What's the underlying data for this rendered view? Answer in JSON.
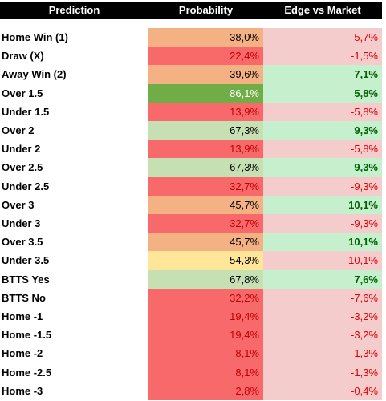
{
  "table": {
    "header": [
      "Prediction",
      "Probability",
      "Edge vs Market"
    ],
    "rows": [
      {
        "prediction": "Home Win (1)",
        "probability": "38,0%",
        "edge": "-5,7%",
        "probability_color": "#f4b183",
        "edge_color": "#f4cccc"
      },
      {
        "prediction": "Draw (X)",
        "probability": "22,4%",
        "edge": "-1,5%",
        "probability_color": "#f8696b",
        "edge_color": "#f4cccc"
      },
      {
        "prediction": "Away Win (2)",
        "probability": "39,6%",
        "edge": "7,1%",
        "probability_color": "#f4b183",
        "edge_color": "#c6efce"
      },
      {
        "prediction": "Over 1.5",
        "probability": "86,1%",
        "edge": "5,8%",
        "probability_color": "#70ad47",
        "edge_color": "#c6efce"
      },
      {
        "prediction": "Under 1.5",
        "probability": "13,9%",
        "edge": "-5,8%",
        "probability_color": "#f8696b",
        "edge_color": "#f4cccc"
      },
      {
        "prediction": "Over 2",
        "probability": "67,3%",
        "edge": "9,3%",
        "probability_color": "#c6e0b4",
        "edge_color": "#c6efce"
      },
      {
        "prediction": "Under 2",
        "probability": "13,9%",
        "edge": "-5,8%",
        "probability_color": "#f8696b",
        "edge_color": "#f4cccc"
      },
      {
        "prediction": "Over 2.5",
        "probability": "67,3%",
        "edge": "9,3%",
        "probability_color": "#c6e0b4",
        "edge_color": "#c6efce"
      },
      {
        "prediction": "Under 2.5",
        "probability": "32,7%",
        "edge": "-9,3%",
        "probability_color": "#f8696b",
        "edge_color": "#f4cccc"
      },
      {
        "prediction": "Over 3",
        "probability": "45,7%",
        "edge": "10,1%",
        "probability_color": "#f4b183",
        "edge_color": "#c6efce"
      },
      {
        "prediction": "Under 3",
        "probability": "32,7%",
        "edge": "-9,3%",
        "probability_color": "#f8696b",
        "edge_color": "#f4cccc"
      },
      {
        "prediction": "Over 3.5",
        "probability": "45,7%",
        "edge": "10,1%",
        "probability_color": "#f4b183",
        "edge_color": "#c6efce"
      },
      {
        "prediction": "Under 3.5",
        "probability": "54,3%",
        "edge": "-10,1%",
        "probability_color": "#ffe699",
        "edge_color": "#f4cccc"
      },
      {
        "prediction": "BTTS Yes",
        "probability": "67,8%",
        "edge": "7,6%",
        "probability_color": "#c6e0b4",
        "edge_color": "#c6efce"
      },
      {
        "prediction": "BTTS No",
        "probability": "32,2%",
        "edge": "-7,6%",
        "probability_color": "#f8696b",
        "edge_color": "#f4cccc"
      },
      {
        "prediction": "Home -1",
        "probability": "19,4%",
        "edge": "-3,2%",
        "probability_color": "#f8696b",
        "edge_color": "#f4cccc"
      },
      {
        "prediction": "Home -1.5",
        "probability": "19,4%",
        "edge": "-3,2%",
        "probability_color": "#f8696b",
        "edge_color": "#f4cccc"
      },
      {
        "prediction": "Home -2",
        "probability": "8,1%",
        "edge": "-1,3%",
        "probability_color": "#f8696b",
        "edge_color": "#f4cccc"
      },
      {
        "prediction": "Home -2.5",
        "probability": "8,1%",
        "edge": "-1,3%",
        "probability_color": "#f8696b",
        "edge_color": "#f4cccc"
      },
      {
        "prediction": "Home -3",
        "probability": "2,8%",
        "edge": "-0,4%",
        "probability_color": "#f8696b",
        "edge_color": "#f4cccc"
      }
    ]
  }
}
